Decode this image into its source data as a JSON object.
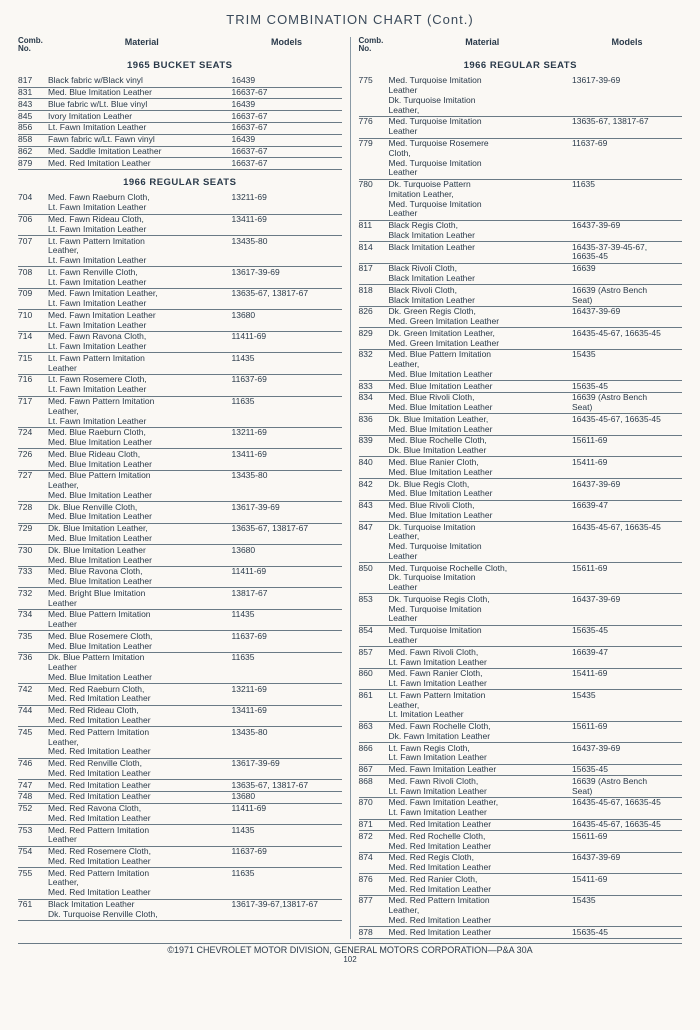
{
  "title": "TRIM COMBINATION CHART (Cont.)",
  "headers": {
    "no": "Comb.\nNo.",
    "material": "Material",
    "models": "Models"
  },
  "sections": {
    "s1965bucket": "1965 BUCKET SEATS",
    "s1966regular": "1966 REGULAR SEATS"
  },
  "left": [
    {
      "section": "s1965bucket"
    },
    {
      "no": "817",
      "mat": "Black fabric w/Black vinyl",
      "mod": "16439"
    },
    {
      "no": "831",
      "mat": "Med. Blue Imitation Leather",
      "mod": "16637-67"
    },
    {
      "no": "843",
      "mat": "Blue fabric w/Lt. Blue vinyl",
      "mod": "16439"
    },
    {
      "no": "845",
      "mat": "Ivory Imitation Leather",
      "mod": "16637-67"
    },
    {
      "no": "856",
      "mat": "Lt. Fawn Imitation Leather",
      "mod": "16637-67"
    },
    {
      "no": "858",
      "mat": "Fawn fabric w/Lt. Fawn vinyl",
      "mod": "16439"
    },
    {
      "no": "862",
      "mat": "Med. Saddle Imitation Leather",
      "mod": "16637-67"
    },
    {
      "no": "879",
      "mat": "Med. Red Imitation Leather",
      "mod": "16637-67"
    },
    {
      "section": "s1966regular"
    },
    {
      "no": "704",
      "mat": "Med. Fawn Raeburn Cloth,\nLt. Fawn Imitation Leather",
      "mod": "13211-69"
    },
    {
      "no": "706",
      "mat": "Med. Fawn Rideau Cloth,\nLt. Fawn Imitation Leather",
      "mod": "13411-69"
    },
    {
      "no": "707",
      "mat": "Lt. Fawn Pattern Imitation\nLeather,\nLt. Fawn Imitation Leather",
      "mod": "13435-80"
    },
    {
      "no": "708",
      "mat": "Lt. Fawn Renville Cloth,\nLt. Fawn Imitation Leather",
      "mod": "13617-39-69"
    },
    {
      "no": "709",
      "mat": "Med. Fawn Imitation Leather,\nLt. Fawn Imitation Leather",
      "mod": "13635-67, 13817-67"
    },
    {
      "no": "710",
      "mat": "Med. Fawn Imitation Leather\nLt. Fawn Imitation Leather",
      "mod": "13680"
    },
    {
      "no": "714",
      "mat": "Med. Fawn Ravona Cloth,\nLt. Fawn Imitation Leather",
      "mod": "11411-69"
    },
    {
      "no": "715",
      "mat": "Lt. Fawn Pattern Imitation\nLeather",
      "mod": "11435"
    },
    {
      "no": "716",
      "mat": "Lt. Fawn Rosemere Cloth,\nLt. Fawn Imitation Leather",
      "mod": "11637-69"
    },
    {
      "no": "717",
      "mat": "Med. Fawn Pattern Imitation\nLeather,\nLt. Fawn Imitation Leather",
      "mod": "11635"
    },
    {
      "no": "724",
      "mat": "Med. Blue Raeburn Cloth,\nMed. Blue Imitation Leather",
      "mod": "13211-69"
    },
    {
      "no": "726",
      "mat": "Med. Blue Rideau Cloth,\nMed. Blue Imitation Leather",
      "mod": "13411-69"
    },
    {
      "no": "727",
      "mat": "Med. Blue Pattern Imitation\nLeather,\nMed. Blue Imitation Leather",
      "mod": "13435-80"
    },
    {
      "no": "728",
      "mat": "Dk. Blue Renville Cloth,\nMed. Blue Imitation Leather",
      "mod": "13617-39-69"
    },
    {
      "no": "729",
      "mat": "Dk. Blue Imitation Leather,\nMed. Blue Imitation Leather",
      "mod": "13635-67, 13817-67"
    },
    {
      "no": "730",
      "mat": "Dk. Blue Imitation Leather\nMed. Blue Imitation Leather",
      "mod": "13680"
    },
    {
      "no": "733",
      "mat": "Med. Blue Ravona Cloth,\nMed. Blue Imitation Leather",
      "mod": "11411-69"
    },
    {
      "no": "732",
      "mat": "Med. Bright Blue Imitation\nLeather",
      "mod": "13817-67"
    },
    {
      "no": "734",
      "mat": "Med. Blue Pattern Imitation\nLeather",
      "mod": "11435"
    },
    {
      "no": "735",
      "mat": "Med. Blue Rosemere Cloth,\nMed. Blue Imitation Leather",
      "mod": "11637-69"
    },
    {
      "no": "736",
      "mat": "Dk. Blue Pattern Imitation\nLeather\nMed. Blue Imitation Leather",
      "mod": "11635"
    },
    {
      "no": "742",
      "mat": "Med. Red Raeburn Cloth,\nMed. Red Imitation Leather",
      "mod": "13211-69"
    },
    {
      "no": "744",
      "mat": "Med. Red Rideau Cloth,\nMed. Red Imitation Leather",
      "mod": "13411-69"
    },
    {
      "no": "745",
      "mat": "Med. Red Pattern Imitation\nLeather,\nMed. Red Imitation Leather",
      "mod": "13435-80"
    },
    {
      "no": "746",
      "mat": "Med. Red Renville Cloth,\nMed. Red Imitation Leather",
      "mod": "13617-39-69"
    },
    {
      "no": "747",
      "mat": "Med. Red Imitation Leather",
      "mod": "13635-67, 13817-67"
    },
    {
      "no": "748",
      "mat": "Med. Red Imitation Leather",
      "mod": "13680"
    },
    {
      "no": "752",
      "mat": "Med. Red Ravona Cloth,\nMed. Red Imitation Leather",
      "mod": "11411-69"
    },
    {
      "no": "753",
      "mat": "Med. Red Pattern Imitation\nLeather",
      "mod": "11435"
    },
    {
      "no": "754",
      "mat": "Med. Red Rosemere Cloth,\nMed. Red Imitation Leather",
      "mod": "11637-69"
    },
    {
      "no": "755",
      "mat": "Med. Red Pattern Imitation\nLeather,\nMed. Red Imitation Leather",
      "mod": "11635"
    },
    {
      "no": "761",
      "mat": "Black Imitation Leather\nDk. Turquoise Renville Cloth,",
      "mod": "13617-39-67,13817-67"
    }
  ],
  "right": [
    {
      "section": "s1966regular"
    },
    {
      "no": "775",
      "mat": "Med. Turquoise Imitation\nLeather\nDk. Turquoise Imitation\nLeather,",
      "mod": "13617-39-69"
    },
    {
      "no": "776",
      "mat": "Med. Turquoise Imitation\nLeather",
      "mod": "13635-67, 13817-67"
    },
    {
      "no": "779",
      "mat": "Med. Turquoise Rosemere\nCloth,\nMed. Turquoise Imitation\nLeather",
      "mod": "11637-69"
    },
    {
      "no": "780",
      "mat": "Dk. Turquoise Pattern\nImitation Leather,\nMed. Turquoise Imitation\nLeather",
      "mod": "11635"
    },
    {
      "no": "811",
      "mat": "Black Regis Cloth,\nBlack Imitation Leather",
      "mod": "16437-39-69"
    },
    {
      "no": "814",
      "mat": "Black Imitation Leather",
      "mod": "16435-37-39-45-67,\n16635-45"
    },
    {
      "no": "817",
      "mat": "Black Rivoli Cloth,\nBlack Imitation Leather",
      "mod": "16639"
    },
    {
      "no": "818",
      "mat": "Black Rivoli Cloth,\nBlack Imitation Leather",
      "mod": "16639 (Astro Bench\nSeat)"
    },
    {
      "no": "826",
      "mat": "Dk. Green Regis Cloth,\nMed. Green Imitation Leather",
      "mod": "16437-39-69"
    },
    {
      "no": "829",
      "mat": "Dk. Green Imitation Leather,\nMed. Green Imitation Leather",
      "mod": "16435-45-67, 16635-45"
    },
    {
      "no": "832",
      "mat": "Med. Blue Pattern Imitation\nLeather,\nMed. Blue Imitation Leather",
      "mod": "15435"
    },
    {
      "no": "833",
      "mat": "Med. Blue Imitation Leather",
      "mod": "15635-45"
    },
    {
      "no": "834",
      "mat": "Med. Blue Rivoli Cloth,\nMed. Blue Imitation Leather",
      "mod": "16639 (Astro Bench\nSeat)"
    },
    {
      "no": "836",
      "mat": "Dk. Blue Imitation Leather,\nMed. Blue Imitation Leather",
      "mod": "16435-45-67, 16635-45"
    },
    {
      "no": "839",
      "mat": "Med. Blue Rochelle Cloth,\nDk. Blue Imitation Leather",
      "mod": "15611-69"
    },
    {
      "no": "840",
      "mat": "Med. Blue Ranier Cloth,\nMed. Blue Imitation Leather",
      "mod": "15411-69"
    },
    {
      "no": "842",
      "mat": "Dk. Blue Regis Cloth,\nMed. Blue Imitation Leather",
      "mod": "16437-39-69"
    },
    {
      "no": "843",
      "mat": "Med. Blue Rivoli Cloth,\nMed. Blue Imitation Leather",
      "mod": "16639-47"
    },
    {
      "no": "847",
      "mat": "Dk. Turquoise Imitation\nLeather,\nMed. Turquoise Imitation\nLeather",
      "mod": "16435-45-67, 16635-45"
    },
    {
      "no": "850",
      "mat": "Med. Turquoise Rochelle Cloth,\nDk. Turquoise Imitation\nLeather",
      "mod": "15611-69"
    },
    {
      "no": "853",
      "mat": "Dk. Turquoise Regis Cloth,\nMed. Turquoise Imitation\nLeather",
      "mod": "16437-39-69"
    },
    {
      "no": "854",
      "mat": "Med. Turquoise Imitation\nLeather",
      "mod": "15635-45"
    },
    {
      "no": "857",
      "mat": "Med. Fawn Rivoli Cloth,\nLt. Fawn Imitation Leather",
      "mod": "16639-47"
    },
    {
      "no": "860",
      "mat": "Med. Fawn Ranier Cloth,\nLt. Fawn Imitation Leather",
      "mod": "15411-69"
    },
    {
      "no": "861",
      "mat": "Lt. Fawn Pattern Imitation\nLeather,\nLt. Imitation Leather",
      "mod": "15435"
    },
    {
      "no": "863",
      "mat": "Med. Fawn Rochelle Cloth,\nDk. Fawn Imitation Leather",
      "mod": "15611-69"
    },
    {
      "no": "866",
      "mat": "Lt. Fawn Regis Cloth,\nLt. Fawn Imitation Leather",
      "mod": "16437-39-69"
    },
    {
      "no": "867",
      "mat": "Med. Fawn Imitation Leather",
      "mod": "15635-45"
    },
    {
      "no": "868",
      "mat": "Med. Fawn Rivoli Cloth,\nLt. Fawn Imitation Leather",
      "mod": "16639 (Astro Bench\nSeat)"
    },
    {
      "no": "870",
      "mat": "Med. Fawn Imitation Leather,\nLt. Fawn Imitation Leather",
      "mod": "16435-45-67, 16635-45"
    },
    {
      "no": "871",
      "mat": "Med. Red Imitation Leather",
      "mod": "16435-45-67, 16635-45"
    },
    {
      "no": "872",
      "mat": "Med. Red Rochelle Cloth,\nMed. Red Imitation Leather",
      "mod": "15611-69"
    },
    {
      "no": "874",
      "mat": "Med. Red Regis Cloth,\nMed. Red Imitation Leather",
      "mod": "16437-39-69"
    },
    {
      "no": "876",
      "mat": "Med. Red Ranier Cloth,\nMed. Red Imitation Leather",
      "mod": "15411-69"
    },
    {
      "no": "877",
      "mat": "Med. Red Pattern Imitation\nLeather,\nMed. Red Imitation Leather",
      "mod": "15435"
    },
    {
      "no": "878",
      "mat": "Med. Red Imitation Leather",
      "mod": "15635-45"
    }
  ],
  "footer": "©1971 CHEVROLET MOTOR DIVISION, GENERAL MOTORS CORPORATION—P&A 30A",
  "pagenum": "102"
}
